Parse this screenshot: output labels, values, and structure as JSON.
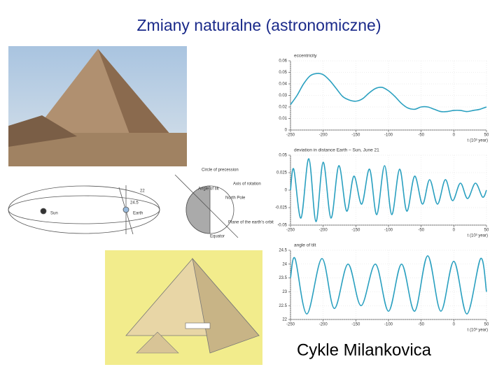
{
  "title": "Zmiany naturalne (astronomiczne)",
  "caption": "Cykle Milankovica",
  "diagram": {
    "labels": [
      "Sun",
      "Earth",
      "24.5",
      "22",
      "Circle of precession",
      "Axis of rotation",
      "Angle of tilt",
      "North Pole",
      "Plane of the earth's orbit",
      "Equator"
    ]
  },
  "chart_data": [
    {
      "type": "line",
      "title": "eccentricity",
      "x_label": "t (10³ year)",
      "xlim": [
        -250,
        50
      ],
      "xticks": [
        -250,
        -200,
        -150,
        -100,
        -50,
        0,
        50
      ],
      "ylim": [
        0,
        0.06
      ],
      "yticks": [
        0,
        0.01,
        0.02,
        0.03,
        0.04,
        0.05,
        0.06
      ],
      "grid": true,
      "series": [
        {
          "name": "eccentricity",
          "color": "#2aa0c0",
          "x": [
            -250,
            -240,
            -230,
            -220,
            -210,
            -200,
            -190,
            -180,
            -170,
            -160,
            -150,
            -140,
            -130,
            -120,
            -110,
            -100,
            -90,
            -80,
            -70,
            -60,
            -50,
            -40,
            -30,
            -20,
            -10,
            0,
            10,
            20,
            30,
            40,
            50
          ],
          "values": [
            0.022,
            0.03,
            0.04,
            0.047,
            0.049,
            0.048,
            0.043,
            0.036,
            0.029,
            0.026,
            0.025,
            0.027,
            0.032,
            0.036,
            0.037,
            0.034,
            0.029,
            0.023,
            0.019,
            0.018,
            0.02,
            0.02,
            0.018,
            0.016,
            0.016,
            0.017,
            0.017,
            0.016,
            0.017,
            0.018,
            0.02
          ]
        }
      ]
    },
    {
      "type": "line",
      "title": "deviation in distance Earth – Sun, June 21",
      "x_label": "t (10³ year)",
      "xlim": [
        -250,
        50
      ],
      "xticks": [
        -250,
        -200,
        -150,
        -100,
        -50,
        0,
        50
      ],
      "ylim": [
        -0.05,
        0.05
      ],
      "yticks": [
        -0.05,
        -0.025,
        0,
        0.025,
        0.05
      ],
      "grid": true,
      "series": [
        {
          "name": "deviation",
          "color": "#2aa0c0",
          "x": [
            -250,
            -245,
            -234,
            -222,
            -211,
            -200,
            -188,
            -176,
            -164,
            -153,
            -141,
            -129,
            -118,
            -106,
            -95,
            -83,
            -72,
            -60,
            -48,
            -37,
            -25,
            -13,
            -2,
            10,
            21,
            33,
            44,
            50
          ],
          "values": [
            0,
            0.03,
            -0.04,
            0.045,
            -0.045,
            0.04,
            -0.04,
            0.035,
            -0.03,
            0.02,
            -0.02,
            0.03,
            -0.035,
            0.035,
            -0.035,
            0.03,
            -0.03,
            0.02,
            -0.02,
            0.015,
            -0.02,
            0.015,
            -0.015,
            0.01,
            -0.012,
            0.01,
            -0.01,
            0
          ]
        }
      ]
    },
    {
      "type": "line",
      "title": "angle of tilt",
      "x_label": "t (10³ year)",
      "xlim": [
        -250,
        50
      ],
      "xticks": [
        -250,
        -200,
        -150,
        -100,
        -50,
        0,
        50
      ],
      "ylim": [
        22,
        24.5
      ],
      "yticks": [
        22,
        22.5,
        23,
        23.5,
        24,
        24.5
      ],
      "grid": true,
      "series": [
        {
          "name": "tilt",
          "color": "#2aa0c0",
          "x": [
            -250,
            -243,
            -225,
            -202,
            -183,
            -162,
            -142,
            -120,
            -100,
            -80,
            -60,
            -40,
            -20,
            0,
            20,
            41,
            50
          ],
          "values": [
            23.5,
            24.2,
            22.2,
            24.2,
            22.4,
            24.0,
            22.5,
            24.0,
            22.3,
            24.0,
            22.3,
            24.3,
            22.3,
            24.1,
            22.2,
            24.2,
            23.0
          ]
        }
      ]
    }
  ]
}
